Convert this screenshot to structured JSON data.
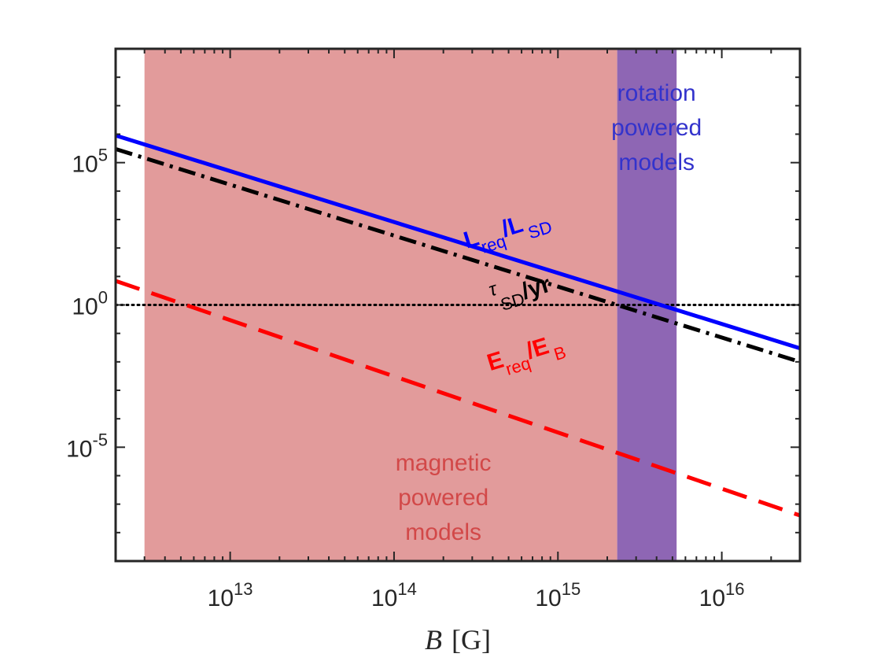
{
  "chart_data": {
    "type": "line",
    "xlabel_var": "B",
    "xlabel_unit": "[G]",
    "xscale": "log",
    "yscale": "log",
    "xlim": [
      2000000000000.0,
      3e+16
    ],
    "ylim": [
      1e-09,
      1000000000.0
    ],
    "xticks": [
      {
        "value": 10000000000000.0,
        "base": "10",
        "exp": "13"
      },
      {
        "value": 100000000000000.0,
        "base": "10",
        "exp": "14"
      },
      {
        "value": 1000000000000000.0,
        "base": "10",
        "exp": "15"
      },
      {
        "value": 1e+16,
        "base": "10",
        "exp": "16"
      }
    ],
    "yticks": [
      {
        "value": 100000.0,
        "base": "10",
        "exp": "5"
      },
      {
        "value": 1,
        "base": "10",
        "exp": "0"
      },
      {
        "value": 1e-05,
        "base": "10",
        "exp": "-5"
      }
    ],
    "regions": [
      {
        "name": "magnetic-region",
        "x": [
          3000000000000.0,
          2300000000000000.0
        ],
        "color": "#e29b9b",
        "label": [
          "magnetic",
          "powered",
          "models"
        ],
        "label_color": "#d24848",
        "label_at": [
          200000000000000.0,
          1.5e-06
        ]
      },
      {
        "name": "rotation-region",
        "x": [
          2300000000000000.0,
          5300000000000000.0
        ],
        "color": "#8e66b4",
        "label": [
          "rotation",
          "powered",
          "models"
        ],
        "label_color": "#3333cc",
        "label_at": [
          4000000000000000.0,
          15000000.0
        ]
      }
    ],
    "reference_line": {
      "y": 1,
      "style": "dotted",
      "color": "#000000"
    },
    "series": [
      {
        "name": "L_req/L_SD",
        "x": [
          2000000000000.0,
          3e+16
        ],
        "y": [
          900000.0,
          0.03
        ],
        "color": "#0000ff",
        "style": "solid",
        "label": {
          "main": "L",
          "sub1": "req",
          "mid": "/L",
          "sub2": "SD"
        },
        "label_at": [
          500000000000000.0,
          270
        ],
        "label_angle": -17
      },
      {
        "name": "tau_SD/yr",
        "x": [
          2000000000000.0,
          3e+16
        ],
        "y": [
          300000.0,
          0.01
        ],
        "color": "#000000",
        "style": "dashdot",
        "label": {
          "main": "τ",
          "sub1": "SD",
          "mid": "/yr"
        },
        "label_at": [
          600000000000000.0,
          2.5
        ],
        "label_angle": -17
      },
      {
        "name": "E_req/E_B",
        "x": [
          2000000000000.0,
          3e+16
        ],
        "y": [
          7.0,
          4e-08
        ],
        "color": "#ff0000",
        "style": "dashed",
        "label": {
          "main": "E",
          "sub1": "req",
          "mid": "/E",
          "sub2": "B"
        },
        "label_at": [
          650000000000000.0,
          0.012
        ],
        "label_angle": -17
      }
    ]
  }
}
